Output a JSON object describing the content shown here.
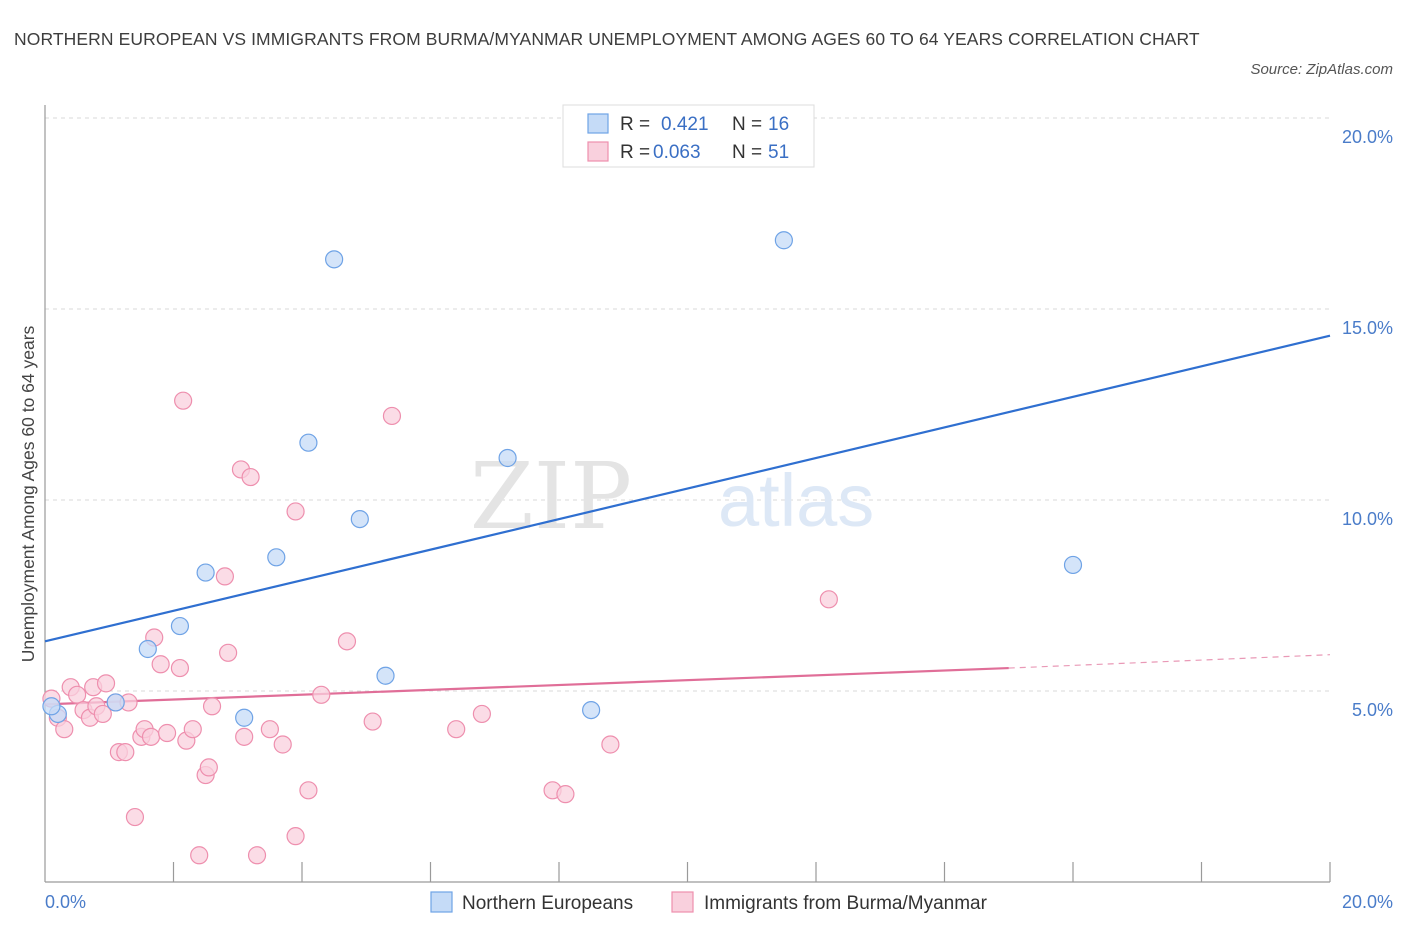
{
  "title": "NORTHERN EUROPEAN VS IMMIGRANTS FROM BURMA/MYANMAR UNEMPLOYMENT AMONG AGES 60 TO 64 YEARS CORRELATION CHART",
  "source": "Source: ZipAtlas.com",
  "watermark": {
    "zip": "ZIP",
    "atlas": "atlas"
  },
  "chart_data": {
    "type": "scatter",
    "xlabel": "",
    "ylabel": "Unemployment Among Ages 60 to 64 years",
    "xlim": [
      0,
      20
    ],
    "ylim": [
      0,
      20
    ],
    "x_tick_labels": [
      "0.0%",
      "20.0%"
    ],
    "y_ticks": [
      5,
      10,
      15,
      20
    ],
    "y_tick_labels": [
      "5.0%",
      "10.0%",
      "15.0%",
      "20.0%"
    ],
    "grid": true,
    "legend_position": "top-center",
    "series": [
      {
        "name": "Northern Europeans",
        "color": "#6fa3e6",
        "fill": "#c5dbf7",
        "line_color": "#2f6fd0",
        "R": "0.421",
        "N": "16",
        "trend": {
          "x": [
            0,
            20
          ],
          "y": [
            6.3,
            14.3
          ]
        },
        "points": [
          {
            "x": 0.2,
            "y": 4.4
          },
          {
            "x": 1.1,
            "y": 4.7
          },
          {
            "x": 1.6,
            "y": 6.1
          },
          {
            "x": 2.1,
            "y": 6.7
          },
          {
            "x": 2.5,
            "y": 8.1
          },
          {
            "x": 3.1,
            "y": 4.3
          },
          {
            "x": 3.6,
            "y": 8.5
          },
          {
            "x": 4.1,
            "y": 11.5
          },
          {
            "x": 4.5,
            "y": 16.3
          },
          {
            "x": 4.9,
            "y": 9.5
          },
          {
            "x": 5.3,
            "y": 5.4
          },
          {
            "x": 7.2,
            "y": 11.1
          },
          {
            "x": 8.5,
            "y": 4.5
          },
          {
            "x": 11.5,
            "y": 16.8
          },
          {
            "x": 16.0,
            "y": 8.3
          },
          {
            "x": 0.1,
            "y": 4.6
          }
        ]
      },
      {
        "name": "Immigrants from Burma/Myanmar",
        "color": "#ee8fae",
        "fill": "#f9d0dd",
        "line_color": "#e06e98",
        "R": "0.063",
        "N": "51",
        "trend": {
          "x": [
            0,
            15
          ],
          "y": [
            4.65,
            5.6
          ]
        },
        "trend_dashed": {
          "x": [
            15,
            20
          ],
          "y": [
            5.6,
            5.95
          ]
        },
        "points": [
          {
            "x": 0.1,
            "y": 4.8
          },
          {
            "x": 0.2,
            "y": 4.3
          },
          {
            "x": 0.3,
            "y": 4.0
          },
          {
            "x": 0.4,
            "y": 5.1
          },
          {
            "x": 0.5,
            "y": 4.9
          },
          {
            "x": 0.6,
            "y": 4.5
          },
          {
            "x": 0.7,
            "y": 4.3
          },
          {
            "x": 0.8,
            "y": 4.6
          },
          {
            "x": 0.9,
            "y": 4.4
          },
          {
            "x": 0.75,
            "y": 5.1
          },
          {
            "x": 0.95,
            "y": 5.2
          },
          {
            "x": 1.1,
            "y": 4.7
          },
          {
            "x": 1.15,
            "y": 3.4
          },
          {
            "x": 1.25,
            "y": 3.4
          },
          {
            "x": 1.3,
            "y": 4.7
          },
          {
            "x": 1.4,
            "y": 1.7
          },
          {
            "x": 1.5,
            "y": 3.8
          },
          {
            "x": 1.55,
            "y": 4.0
          },
          {
            "x": 1.65,
            "y": 3.8
          },
          {
            "x": 1.7,
            "y": 6.4
          },
          {
            "x": 1.8,
            "y": 5.7
          },
          {
            "x": 1.9,
            "y": 3.9
          },
          {
            "x": 2.1,
            "y": 5.6
          },
          {
            "x": 2.15,
            "y": 12.6
          },
          {
            "x": 2.2,
            "y": 3.7
          },
          {
            "x": 2.3,
            "y": 4.0
          },
          {
            "x": 2.4,
            "y": 0.7
          },
          {
            "x": 2.5,
            "y": 2.8
          },
          {
            "x": 2.55,
            "y": 3.0
          },
          {
            "x": 2.6,
            "y": 4.6
          },
          {
            "x": 2.8,
            "y": 8.0
          },
          {
            "x": 2.85,
            "y": 6.0
          },
          {
            "x": 3.05,
            "y": 10.8
          },
          {
            "x": 3.1,
            "y": 3.8
          },
          {
            "x": 3.2,
            "y": 10.6
          },
          {
            "x": 3.3,
            "y": 0.7
          },
          {
            "x": 3.5,
            "y": 4.0
          },
          {
            "x": 3.7,
            "y": 3.6
          },
          {
            "x": 3.9,
            "y": 1.2
          },
          {
            "x": 3.9,
            "y": 9.7
          },
          {
            "x": 4.1,
            "y": 2.4
          },
          {
            "x": 4.3,
            "y": 4.9
          },
          {
            "x": 4.7,
            "y": 6.3
          },
          {
            "x": 5.1,
            "y": 4.2
          },
          {
            "x": 5.4,
            "y": 12.2
          },
          {
            "x": 6.4,
            "y": 4.0
          },
          {
            "x": 6.8,
            "y": 4.4
          },
          {
            "x": 7.9,
            "y": 2.4
          },
          {
            "x": 8.1,
            "y": 2.3
          },
          {
            "x": 8.8,
            "y": 3.6
          },
          {
            "x": 12.2,
            "y": 7.4
          }
        ]
      }
    ]
  },
  "legend": {
    "r_label": "R =",
    "n_label": "N ="
  }
}
